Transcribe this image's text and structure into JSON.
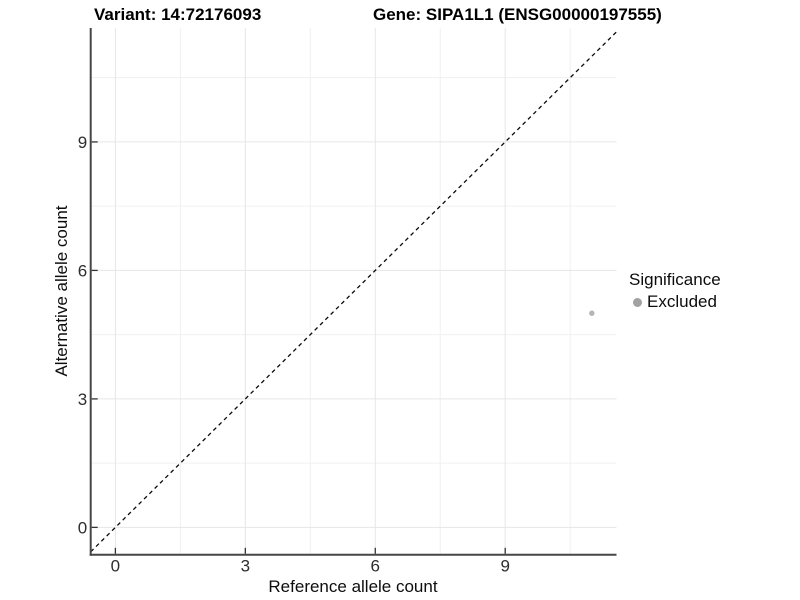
{
  "header": {
    "variant_title": "Variant: 14:72176093",
    "gene_title": "Gene: SIPA1L1 (ENSG00000197555)"
  },
  "legend": {
    "title": "Significance",
    "items": [
      {
        "label": "Excluded",
        "color": "#a2a2a2"
      }
    ]
  },
  "chart_data": {
    "type": "scatter",
    "title": "Variant: 14:72176093    Gene: SIPA1L1 (ENSG00000197555)",
    "xlabel": "Reference allele count",
    "ylabel": "Alternative allele count",
    "xlim": [
      -0.57,
      11.57
    ],
    "ylim": [
      -0.64,
      11.66
    ],
    "x_major_ticks": [
      0,
      3,
      6,
      9
    ],
    "y_major_ticks": [
      0,
      3,
      6,
      9
    ],
    "x_minor_ticks": [
      1.5,
      4.5,
      7.5,
      10.5
    ],
    "y_minor_ticks": [
      1.5,
      4.5,
      7.5,
      10.5
    ],
    "grid": true,
    "legend_position": "right",
    "series": [
      {
        "name": "Excluded",
        "color": "#b4b4b4",
        "marker_radius": 2.7,
        "points": [
          [
            11,
            5
          ]
        ]
      }
    ],
    "reference_line": {
      "kind": "identity",
      "slope": 1,
      "intercept": 0,
      "style": "dashed",
      "color": "#0a0a0a"
    }
  },
  "style": {
    "grid_major_color": "#e6e6e6",
    "grid_minor_color": "#f0f0f0",
    "axis_line_color": "#464646",
    "tick_color": "#333333",
    "tick_label_color": "#2e2e2e"
  }
}
